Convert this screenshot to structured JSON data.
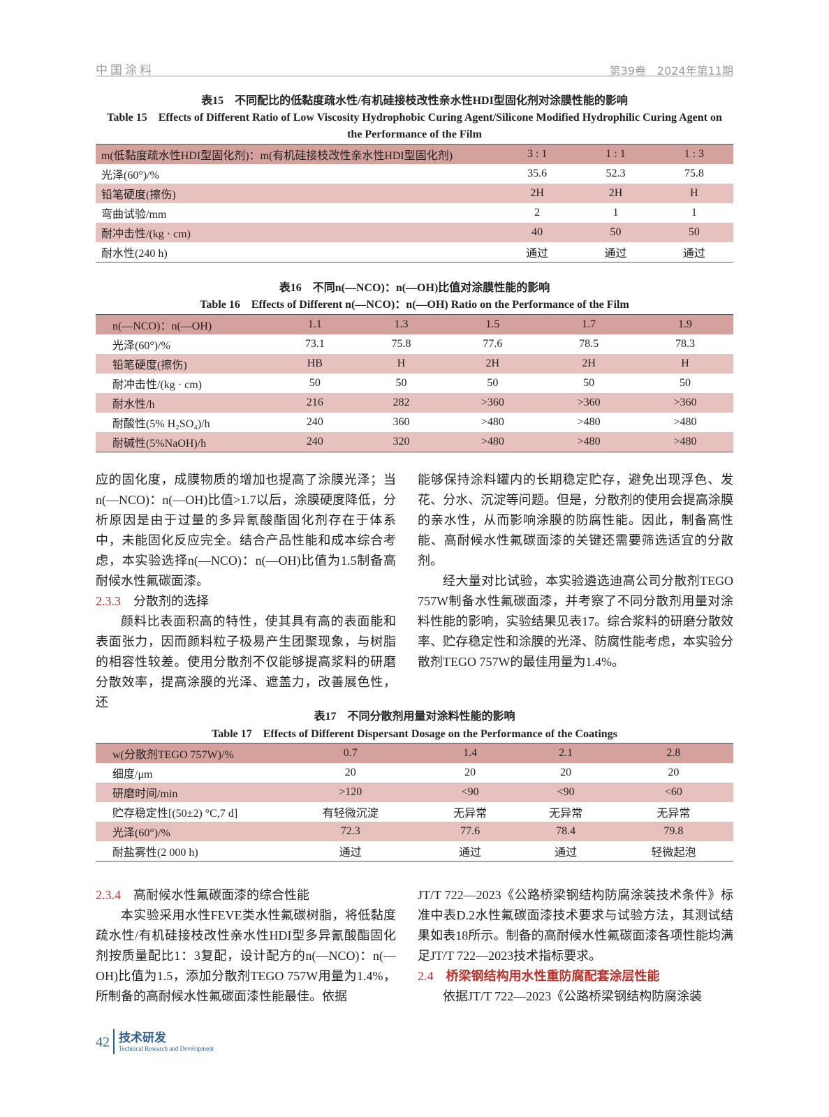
{
  "header": {
    "journal": "中国涂料",
    "issue": "第39卷　2024年第11期"
  },
  "table15": {
    "caption_cn": "表15　不同配比的低黏度疏水性/有机硅接枝改性亲水性HDI型固化剂对涂膜性能的影响",
    "caption_en": "Table 15　Effects of Different Ratio of Low Viscosity Hydrophobic Curing Agent/Silicone Modified Hydrophilic Curing Agent on the Performance of the Film",
    "header": [
      "m(低黏度疏水性HDI型固化剂)：m(有机硅接枝改性亲水性HDI型固化剂)",
      "3 : 1",
      "1 : 1",
      "1 : 3"
    ],
    "rows": [
      [
        "光泽(60°)/%",
        "35.6",
        "52.3",
        "75.8"
      ],
      [
        "铅笔硬度(擦伤)",
        "2H",
        "2H",
        "H"
      ],
      [
        "弯曲试验/mm",
        "2",
        "1",
        "1"
      ],
      [
        "耐冲击性/(kg · cm)",
        "40",
        "50",
        "50"
      ],
      [
        "耐水性(240 h)",
        "通过",
        "通过",
        "通过"
      ]
    ]
  },
  "table16": {
    "caption_cn": "表16　不同n(—NCO)：n(—OH)比值对涂膜性能的影响",
    "caption_en": "Table 16　Effects of Different n(—NCO)：n(—OH) Ratio on the Performance of the Film",
    "header": [
      "n(—NCO)：n(—OH)",
      "1.1",
      "1.3",
      "1.5",
      "1.7",
      "1.9"
    ],
    "rows": [
      [
        "光泽(60°)/%",
        "73.1",
        "75.8",
        "77.6",
        "78.5",
        "78.3"
      ],
      [
        "铅笔硬度(擦伤)",
        "HB",
        "H",
        "2H",
        "2H",
        "H"
      ],
      [
        "耐冲击性/(kg · cm)",
        "50",
        "50",
        "50",
        "50",
        "50"
      ],
      [
        "耐水性/h",
        "216",
        "282",
        ">360",
        ">360",
        ">360"
      ],
      [
        "耐酸性(5% H₂SO₄)/h",
        "240",
        "360",
        ">480",
        ">480",
        ">480"
      ],
      [
        "耐碱性(5%NaOH)/h",
        "240",
        "320",
        ">480",
        ">480",
        ">480"
      ]
    ]
  },
  "table17": {
    "caption_cn": "表17　不同分散剂用量对涂料性能的影响",
    "caption_en": "Table 17　Effects of Different Dispersant Dosage on the Performance of the Coatings",
    "header": [
      "w(分散剂TEGO 757W)/%",
      "0.7",
      "1.4",
      "2.1",
      "2.8"
    ],
    "rows": [
      [
        "细度/μm",
        "20",
        "20",
        "20",
        "20"
      ],
      [
        "研磨时间/min",
        ">120",
        "<90",
        "<90",
        "<60"
      ],
      [
        "贮存稳定性[(50±2) °C,7 d]",
        "有轻微沉淀",
        "无异常",
        "无异常",
        "无异常"
      ],
      [
        "光泽(60°)/%",
        "72.3",
        "77.6",
        "78.4",
        "79.8"
      ],
      [
        "耐盐雾性(2 000 h)",
        "通过",
        "通过",
        "通过",
        "轻微起泡"
      ]
    ]
  },
  "body": {
    "p1": "应的固化度，成膜物质的增加也提高了涂膜光泽；当n(—NCO)：n(—OH)比值>1.7以后，涂膜硬度降低，分析原因是由于过量的多异氰酸酯固化剂存在于体系中，未能固化反应完全。结合产品性能和成本综合考虑，本实验选择n(—NCO)：n(—OH)比值为1.5制备高耐候水性氟碳面漆。",
    "s233_num": "2.3.3",
    "s233_title": "分散剂的选择",
    "p2": "颜料比表面积高的特性，使其具有高的表面能和表面张力，因而颜料粒子极易产生团聚现象，与树脂的相容性较差。使用分散剂不仅能够提高浆料的研磨分散效率，提高涂膜的光泽、遮盖力，改善展色性，还",
    "p3": "能够保持涂料罐内的长期稳定贮存，避免出现浮色、发花、分水、沉淀等问题。但是，分散剂的使用会提高涂膜的亲水性，从而影响涂膜的防腐性能。因此，制备高性能、高耐候水性氟碳面漆的关键还需要筛选适宜的分散剂。",
    "p4": "经大量对比试验，本实验遴选迪高公司分散剂TEGO 757W制备水性氟碳面漆，并考察了不同分散剂用量对涂料性能的影响，实验结果见表17。综合浆料的研磨分散效率、贮存稳定性和涂膜的光泽、防腐性能考虑，本实验分散剂TEGO 757W的最佳用量为1.4%。",
    "s234_num": "2.3.4",
    "s234_title": "高耐候水性氟碳面漆的综合性能",
    "p5": "本实验采用水性FEVE类水性氟碳树脂，将低黏度疏水性/有机硅接枝改性亲水性HDI型多异氰酸酯固化剂按质量配比1：3复配，设计配方的n(—NCO)：n(—OH)比值为1.5，添加分散剂TEGO 757W用量为1.4%，所制备的高耐候水性氟碳面漆性能最佳。依据",
    "p6": "JT/T 722—2023《公路桥梁钢结构防腐涂装技术条件》标准中表D.2水性氟碳面漆技术要求与试验方法，其测试结果如表18所示。制备的高耐候水性氟碳面漆各项性能均满足JT/T 722—2023技术指标要求。",
    "s24_num": "2.4",
    "s24_title": "桥梁钢结构用水性重防腐配套涂层性能",
    "p7": "依据JT/T 722—2023《公路桥梁钢结构防腐涂装"
  },
  "footer": {
    "page": "42",
    "section_cn": "技术研发",
    "section_en": "Technical Research and Development"
  },
  "colors": {
    "header_row": "#d5a19d",
    "shaded_row": "#e7c1bd",
    "section_red": "#b8322c",
    "footer_blue": "#2f5f8f"
  }
}
